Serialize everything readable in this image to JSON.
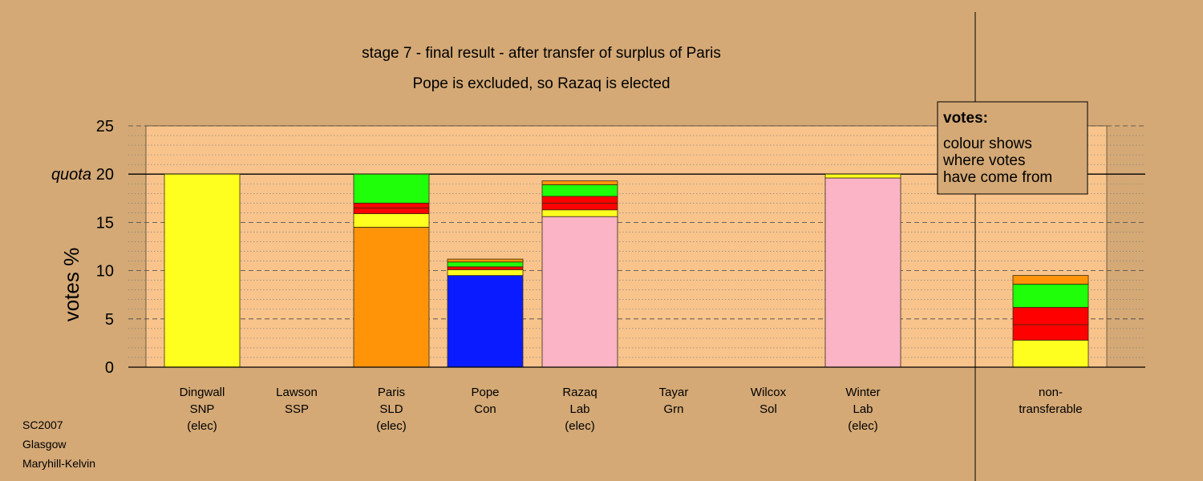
{
  "title": "stage 7 - final result - after transfer of surplus of Paris",
  "subtitle": "Pope is excluded, so Razaq is elected",
  "ylabel": "votes %",
  "quota_label": "quota",
  "legend": {
    "heading": "votes:",
    "lines": [
      "colour shows",
      "where votes",
      "have come from"
    ]
  },
  "footer": [
    "SC2007",
    "Glasgow",
    "Maryhill-Kelvin"
  ],
  "colors": {
    "background": "#d4a976",
    "plot_area": "#f8c48c",
    "SNP": "#ffff1f",
    "SLD": "#ff9409",
    "Con": "#0a1cff",
    "Lab": "#fab4c5",
    "Grn": "#1fff09",
    "SSP": "#ff0000"
  },
  "chart_data": {
    "type": "bar",
    "stacked": true,
    "ylim": [
      0,
      25
    ],
    "yticks": [
      0,
      5,
      10,
      15,
      20,
      25
    ],
    "quota": 20,
    "grid": true,
    "categories": [
      {
        "name": "Dingwall",
        "party": "SNP",
        "status": "(elec)",
        "segments": [
          {
            "from": "SNP",
            "value": 20
          }
        ]
      },
      {
        "name": "Lawson",
        "party": "SSP",
        "status": "",
        "segments": []
      },
      {
        "name": "Paris",
        "party": "SLD",
        "status": "(elec)",
        "segments": [
          {
            "from": "SLD",
            "value": 14.5
          },
          {
            "from": "SNP",
            "value": 1.4
          },
          {
            "from": "SSP",
            "value": 0.6
          },
          {
            "from": "SSP",
            "value": 0.5
          },
          {
            "from": "Grn",
            "value": 3.0
          }
        ]
      },
      {
        "name": "Pope",
        "party": "Con",
        "status": "",
        "segments": [
          {
            "from": "Con",
            "value": 9.5
          },
          {
            "from": "SNP",
            "value": 0.6
          },
          {
            "from": "SSP",
            "value": 0.3
          },
          {
            "from": "Grn",
            "value": 0.5
          },
          {
            "from": "SLD",
            "value": 0.3
          }
        ]
      },
      {
        "name": "Razaq",
        "party": "Lab",
        "status": "(elec)",
        "segments": [
          {
            "from": "Lab",
            "value": 15.6
          },
          {
            "from": "SNP",
            "value": 0.7
          },
          {
            "from": "SSP",
            "value": 0.7
          },
          {
            "from": "SSP",
            "value": 0.7
          },
          {
            "from": "Grn",
            "value": 1.2
          },
          {
            "from": "SLD",
            "value": 0.4
          }
        ]
      },
      {
        "name": "Tayar",
        "party": "Grn",
        "status": "",
        "segments": []
      },
      {
        "name": "Wilcox",
        "party": "Sol",
        "status": "",
        "segments": []
      },
      {
        "name": "Winter",
        "party": "Lab",
        "status": "(elec)",
        "segments": [
          {
            "from": "Lab",
            "value": 19.6
          },
          {
            "from": "SNP",
            "value": 0.4
          }
        ]
      },
      {
        "name": "non-",
        "party": "transferable",
        "status": "",
        "segments": [
          {
            "from": "SNP",
            "value": 2.8
          },
          {
            "from": "SSP",
            "value": 1.6
          },
          {
            "from": "SSP",
            "value": 1.8
          },
          {
            "from": "Grn",
            "value": 2.4
          },
          {
            "from": "SLD",
            "value": 0.9
          }
        ]
      }
    ]
  }
}
